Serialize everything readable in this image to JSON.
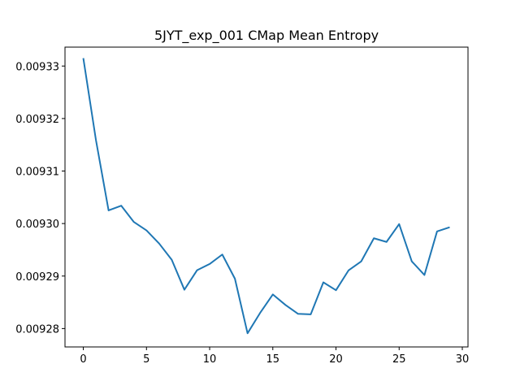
{
  "chart_data": {
    "type": "line",
    "title": "5JYT_exp_001 CMap Mean Entropy",
    "xlabel": "",
    "ylabel": "",
    "xlim": [
      -1.45,
      30.45
    ],
    "ylim": [
      0.0092765,
      0.0093336
    ],
    "x_ticks": [
      0,
      5,
      10,
      15,
      20,
      25,
      30
    ],
    "y_ticks": [
      0.00928,
      0.00929,
      0.0093,
      0.00931,
      0.00932,
      0.00933
    ],
    "y_tick_labels": [
      "0.00928",
      "0.00929",
      "0.00930",
      "0.00931",
      "0.00932",
      "0.00933"
    ],
    "grid": false,
    "line_color": "#1f77b4",
    "series": [
      {
        "x": [
          0,
          1,
          2,
          3,
          4,
          5,
          6,
          7,
          8,
          9,
          10,
          11,
          12,
          13,
          14,
          15,
          16,
          17,
          18,
          19,
          20,
          21,
          22,
          23,
          24,
          25,
          26,
          27,
          28,
          29
        ],
        "values": [
          0.0093315,
          0.0093159,
          0.0093025,
          0.0093034,
          0.0093003,
          0.0092987,
          0.0092962,
          0.0092931,
          0.0092874,
          0.0092911,
          0.0092923,
          0.0092941,
          0.0092895,
          0.0092791,
          0.009283,
          0.0092865,
          0.0092845,
          0.0092828,
          0.0092827,
          0.0092888,
          0.0092873,
          0.0092911,
          0.0092928,
          0.0092972,
          0.0092965,
          0.0092999,
          0.0092928,
          0.0092902,
          0.0092985,
          0.0092993
        ]
      }
    ]
  }
}
